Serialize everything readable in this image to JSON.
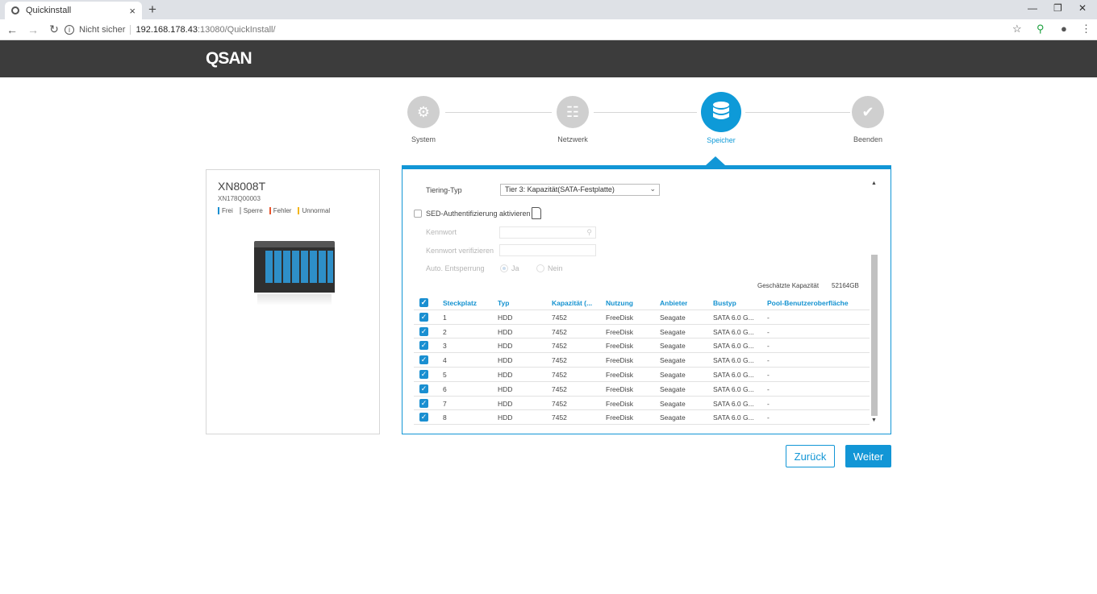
{
  "browser": {
    "tab_title": "Quickinstall",
    "tab_close": "×",
    "new_tab": "+",
    "security_label": "Nicht sicher",
    "url_host": "192.168.178.43",
    "url_path": ":13080/QuickInstall/"
  },
  "header": {
    "logo": "QSAN"
  },
  "steps": [
    {
      "label": "System",
      "icon": "gear-icon"
    },
    {
      "label": "Netzwerk",
      "icon": "network-icon"
    },
    {
      "label": "Speicher",
      "icon": "database-icon",
      "active": true
    },
    {
      "label": "Beenden",
      "icon": "check-icon"
    }
  ],
  "device": {
    "model": "XN8008T",
    "serial": "XN178Q00003",
    "legend": [
      {
        "label": "Frei",
        "color": "#1a8fd1"
      },
      {
        "label": "Sperre",
        "color": "#bdbdbd"
      },
      {
        "label": "Fehler",
        "color": "#e8562e"
      },
      {
        "label": "Unnormal",
        "color": "#f2b51a"
      }
    ]
  },
  "form": {
    "tiering_label": "Tiering-Typ",
    "tiering_value": "Tier 3: Kapazität(SATA-Festplatte)",
    "sed_label": "SED-Authentifizierung aktivieren",
    "password_label": "Kennwort",
    "password_verify_label": "Kennwort verifizieren",
    "auto_unlock_label": "Auto. Entsperrung",
    "radio_yes": "Ja",
    "radio_no": "Nein",
    "capacity_label": "Geschätzte Kapazität",
    "capacity_value": "52164GB"
  },
  "table": {
    "columns": [
      "Steckplatz",
      "Typ",
      "Kapazität (...",
      "Nutzung",
      "Anbieter",
      "Bustyp",
      "Pool-Benutzeroberfläche"
    ],
    "rows": [
      {
        "slot": "1",
        "type": "HDD",
        "capacity": "7452",
        "usage": "FreeDisk",
        "vendor": "Seagate",
        "bus": "SATA 6.0 G...",
        "pool": "-"
      },
      {
        "slot": "2",
        "type": "HDD",
        "capacity": "7452",
        "usage": "FreeDisk",
        "vendor": "Seagate",
        "bus": "SATA 6.0 G...",
        "pool": "-"
      },
      {
        "slot": "3",
        "type": "HDD",
        "capacity": "7452",
        "usage": "FreeDisk",
        "vendor": "Seagate",
        "bus": "SATA 6.0 G...",
        "pool": "-"
      },
      {
        "slot": "4",
        "type": "HDD",
        "capacity": "7452",
        "usage": "FreeDisk",
        "vendor": "Seagate",
        "bus": "SATA 6.0 G...",
        "pool": "-"
      },
      {
        "slot": "5",
        "type": "HDD",
        "capacity": "7452",
        "usage": "FreeDisk",
        "vendor": "Seagate",
        "bus": "SATA 6.0 G...",
        "pool": "-"
      },
      {
        "slot": "6",
        "type": "HDD",
        "capacity": "7452",
        "usage": "FreeDisk",
        "vendor": "Seagate",
        "bus": "SATA 6.0 G...",
        "pool": "-"
      },
      {
        "slot": "7",
        "type": "HDD",
        "capacity": "7452",
        "usage": "FreeDisk",
        "vendor": "Seagate",
        "bus": "SATA 6.0 G...",
        "pool": "-"
      },
      {
        "slot": "8",
        "type": "HDD",
        "capacity": "7452",
        "usage": "FreeDisk",
        "vendor": "Seagate",
        "bus": "SATA 6.0 G...",
        "pool": "-"
      }
    ]
  },
  "buttons": {
    "back": "Zurück",
    "next": "Weiter"
  },
  "colors": {
    "accent": "#1296d6",
    "header_bg": "#3c3c3c"
  }
}
